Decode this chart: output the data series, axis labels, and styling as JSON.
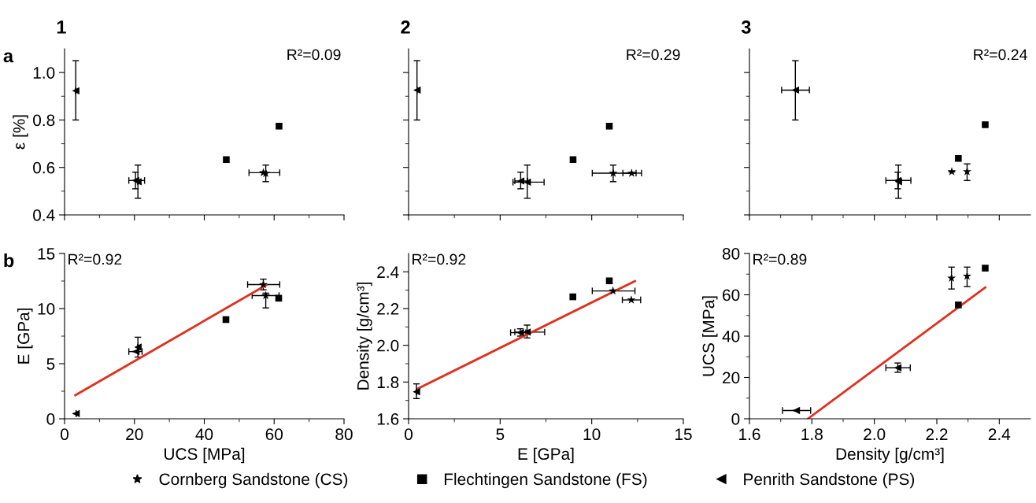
{
  "chart_data": [
    {
      "type": "scatter",
      "title": "1",
      "ylabel": "ε [%]",
      "annotations": [
        "a",
        "R²=0.09"
      ],
      "legend": "bottom",
      "tick_labels": "y",
      "xlim": [
        0,
        80
      ],
      "xticks": [
        0,
        {
          "value": 10,
          "label": null
        },
        20,
        {
          "value": 30,
          "label": null
        },
        40,
        {
          "value": 50,
          "label": null
        },
        60,
        {
          "value": 70,
          "label": null
        },
        80
      ],
      "ylim": [
        0.4,
        1.1
      ],
      "yticks": [
        0.4,
        {
          "value": 0.5,
          "label": null
        },
        0.6,
        {
          "value": 0.7,
          "label": null
        },
        0.8,
        {
          "value": 0.9,
          "label": null
        },
        {
          "value": 1,
          "label": "1.0"
        }
      ],
      "series": [
        {
          "name": "Cornberg Sandstone (CS)",
          "marker": "star",
          "color": "#000000",
          "x": [
            56.9,
            57.6
          ],
          "values": [
            0.578,
            0.575
          ],
          "errors": [
            null,
            [
              0.54,
              0.61
            ]
          ],
          "xerrors": [
            [
              52.8,
              61.6
            ],
            null
          ]
        },
        {
          "name": "Flechtingen Sandstone (FS)",
          "marker": "square",
          "color": "#000000",
          "x": [
            46.3,
            61.4
          ],
          "values": [
            0.633,
            0.774
          ]
        },
        {
          "name": "Penrith Sandstone (PS)",
          "marker": "triangle",
          "color": "#000000",
          "x": [
            3.2,
            20.3,
            21.0
          ],
          "values": [
            0.923,
            0.545,
            0.54
          ],
          "errors": [
            [
              0.8,
              1.05
            ],
            [
              0.51,
              0.58
            ],
            [
              0.47,
              0.61
            ]
          ],
          "xerrors": [
            null,
            [
              18.4,
              22.9
            ],
            null
          ]
        }
      ]
    },
    {
      "type": "scatter",
      "title": "2",
      "annotations": [
        "R²=0.29"
      ],
      "tick_labels": false,
      "xlim": [
        0,
        15
      ],
      "xticks": [
        0,
        {
          "value": 2.5,
          "label": null
        },
        5,
        {
          "value": 7.5,
          "label": null
        },
        10,
        {
          "value": 12.5,
          "label": null
        },
        15
      ],
      "ylim": [
        0.4,
        1.1
      ],
      "yticks": [
        0.4,
        {
          "value": 0.5,
          "label": null
        },
        0.6,
        {
          "value": 0.7,
          "label": null
        },
        0.8,
        {
          "value": 0.9,
          "label": null
        },
        1
      ],
      "series": [
        {
          "marker": "star",
          "color": "#000000",
          "x": [
            11.17,
            12.18
          ],
          "values": [
            0.576,
            0.576
          ],
          "errors": [
            [
              0.54,
              0.61
            ],
            null
          ],
          "xerrors": [
            [
              10.03,
              12.42
            ],
            [
              11.7,
              12.72
            ]
          ]
        },
        {
          "marker": "square",
          "color": "#000000",
          "x": [
            8.98,
            10.96
          ],
          "values": [
            0.633,
            0.774
          ]
        },
        {
          "marker": "triangle",
          "color": "#000000",
          "x": [
            0.46,
            6.12,
            6.48
          ],
          "values": [
            0.926,
            0.543,
            0.538
          ],
          "errors": [
            [
              0.8,
              1.05
            ],
            [
              0.51,
              0.58
            ],
            [
              0.47,
              0.61
            ]
          ],
          "xerrors": [
            null,
            [
              5.8,
              6.5
            ],
            [
              5.7,
              7.4
            ]
          ]
        }
      ]
    },
    {
      "type": "scatter",
      "title": "3",
      "annotations": [
        "R²=0.24"
      ],
      "tick_labels": false,
      "xlim": [
        1.6,
        2.5
      ],
      "xticks": [
        1.6,
        {
          "value": 1.7,
          "label": null
        },
        1.8,
        {
          "value": 1.9,
          "label": null
        },
        2,
        {
          "value": 2.1,
          "label": null
        },
        2.2,
        {
          "value": 2.3,
          "label": null
        },
        2.4
      ],
      "ylim": [
        0.4,
        1.1
      ],
      "yticks": [
        0.4,
        {
          "value": 0.5,
          "label": null
        },
        0.6,
        {
          "value": 0.7,
          "label": null
        },
        0.8,
        {
          "value": 0.9,
          "label": null
        },
        1
      ],
      "series": [
        {
          "marker": "star",
          "color": "#000000",
          "x": [
            2.248,
            2.297
          ],
          "values": [
            0.582,
            0.582
          ],
          "errors": [
            null,
            [
              0.545,
              0.615
            ]
          ]
        },
        {
          "marker": "square",
          "color": "#000000",
          "x": [
            2.269,
            2.355
          ],
          "values": [
            0.638,
            0.78
          ]
        },
        {
          "marker": "triangle",
          "color": "#000000",
          "x": [
            1.747,
            2.075,
            2.077
          ],
          "values": [
            0.926,
            0.545,
            0.54
          ],
          "errors": [
            [
              0.8,
              1.05
            ],
            [
              0.51,
              0.58
            ],
            [
              0.47,
              0.61
            ]
          ],
          "xerrors": [
            [
              1.703,
              1.792
            ],
            [
              2.037,
              2.117
            ],
            null
          ]
        }
      ]
    },
    {
      "type": "scatter",
      "xlabel": "UCS [MPa]",
      "ylabel": "E [GPa]",
      "annotations": [
        "b",
        "R²=0.92"
      ],
      "xlim": [
        0,
        80
      ],
      "xticks": [
        0,
        {
          "value": 10,
          "label": null
        },
        20,
        {
          "value": 30,
          "label": null
        },
        40,
        {
          "value": 50,
          "label": null
        },
        60,
        {
          "value": 70,
          "label": null
        },
        80
      ],
      "ylim": [
        0,
        15
      ],
      "yticks": [
        0,
        {
          "value": 2.5,
          "label": null
        },
        5,
        {
          "value": 7.5,
          "label": null
        },
        10,
        {
          "value": 12.5,
          "label": null
        },
        15
      ],
      "series": [
        {
          "marker": "star",
          "color": "#000000",
          "x": [
            56.9,
            57.6
          ],
          "values": [
            12.18,
            11.18
          ],
          "errors": [
            [
              11.7,
              12.67
            ],
            [
              10.06,
              11.4
            ]
          ],
          "xerrors": [
            [
              52.4,
              61.6
            ],
            [
              53.7,
              61.4
            ]
          ]
        },
        {
          "marker": "square",
          "color": "#000000",
          "x": [
            46.2,
            61.3
          ],
          "values": [
            9.0,
            10.94
          ]
        },
        {
          "marker": "triangle",
          "color": "#000000",
          "x": [
            3.3,
            20.4,
            21.0
          ],
          "values": [
            0.47,
            6.1,
            6.5
          ],
          "errors": [
            null,
            null,
            [
              5.6,
              7.4
            ]
          ],
          "xerrors": [
            null,
            [
              18.4,
              22.2
            ],
            null
          ]
        },
        {
          "type": "line",
          "color": "#e0301e",
          "x": [
            3.1,
            57.8
          ],
          "values": [
            2.14,
            12.15
          ]
        }
      ]
    },
    {
      "type": "scatter",
      "xlabel": "E [GPa]",
      "ylabel": "Density [g/cm³]",
      "annotations": [
        "R²=0.92"
      ],
      "xlim": [
        0,
        15
      ],
      "xticks": [
        0,
        {
          "value": 2.5,
          "label": null
        },
        5,
        {
          "value": 7.5,
          "label": null
        },
        10,
        {
          "value": 12.5,
          "label": null
        },
        15
      ],
      "ylim": [
        1.6,
        2.5
      ],
      "yticks": [
        1.6,
        {
          "value": 1.7,
          "label": null
        },
        1.8,
        {
          "value": 1.9,
          "label": null
        },
        {
          "value": 2,
          "label": "2.0"
        },
        {
          "value": 2.1,
          "label": null
        },
        2.2,
        {
          "value": 2.3,
          "label": null
        },
        2.4
      ],
      "series": [
        {
          "marker": "star",
          "color": "#000000",
          "x": [
            11.16,
            12.16
          ],
          "values": [
            2.296,
            2.247
          ],
          "xerrors": [
            [
              10.03,
              12.36
            ],
            [
              11.67,
              12.67
            ]
          ]
        },
        {
          "marker": "square",
          "color": "#000000",
          "x": [
            8.97,
            10.96
          ],
          "values": [
            2.264,
            2.351
          ]
        },
        {
          "marker": "triangle",
          "color": "#000000",
          "x": [
            0.43,
            6.1,
            6.47
          ],
          "values": [
            1.747,
            2.069,
            2.072
          ],
          "errors": [
            [
              1.71,
              1.79
            ],
            [
              2.05,
              2.09
            ],
            [
              2.04,
              2.11
            ]
          ],
          "xerrors": [
            null,
            [
              5.57,
              6.4
            ],
            [
              5.8,
              7.43
            ]
          ]
        },
        {
          "type": "line",
          "color": "#e0301e",
          "x": [
            0.54,
            12.36
          ],
          "values": [
            1.766,
            2.35
          ]
        }
      ]
    },
    {
      "type": "scatter",
      "xlabel": "Density [g/cm³]",
      "ylabel": "UCS [MPa]",
      "annotations": [
        "R²=0.89"
      ],
      "xlim": [
        1.6,
        2.5
      ],
      "xticks": [
        1.6,
        {
          "value": 1.7,
          "label": null
        },
        1.8,
        {
          "value": 1.9,
          "label": null
        },
        {
          "value": 2,
          "label": "2.0"
        },
        {
          "value": 2.1,
          "label": null
        },
        2.2,
        {
          "value": 2.3,
          "label": null
        },
        2.4
      ],
      "ylim": [
        0,
        80
      ],
      "yticks": [
        0,
        {
          "value": 10,
          "label": null
        },
        20,
        {
          "value": 30,
          "label": null
        },
        40,
        {
          "value": 50,
          "label": null
        },
        60,
        {
          "value": 70,
          "label": null
        },
        80
      ],
      "series": [
        {
          "marker": "star",
          "color": "#000000",
          "x": [
            2.247,
            2.297
          ],
          "values": [
            68.1,
            69.0
          ],
          "errors": [
            [
              62.8,
              73.4
            ],
            [
              64.0,
              73.4
            ]
          ]
        },
        {
          "marker": "square",
          "color": "#000000",
          "x": [
            2.269,
            2.355
          ],
          "values": [
            55.1,
            72.9
          ]
        },
        {
          "marker": "triangle",
          "color": "#000000",
          "x": [
            1.75,
            2.075
          ],
          "values": [
            4,
            24.7
          ],
          "errors": [
            null,
            [
              22.5,
              27.0
            ]
          ],
          "xerrors": [
            [
              1.706,
              1.796
            ],
            [
              2.037,
              2.115
            ]
          ]
        },
        {
          "type": "line",
          "color": "#e0301e",
          "x": [
            1.787,
            2.355
          ],
          "values": [
            0,
            63.5
          ]
        }
      ]
    }
  ]
}
